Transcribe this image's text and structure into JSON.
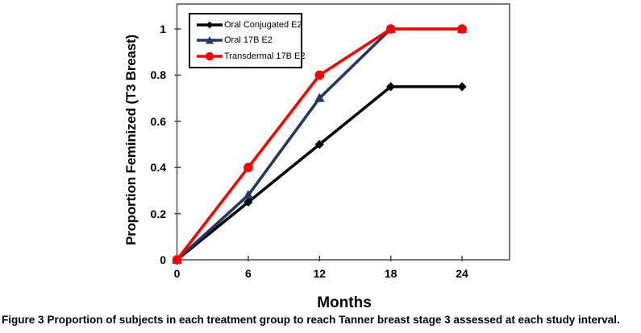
{
  "figure": {
    "caption_label": "Figure 3",
    "caption_text": "Proportion of subjects in each treatment group to reach Tanner breast stage 3 assessed at each study interval."
  },
  "chart_data": {
    "type": "line",
    "title": "",
    "xlabel": "Months",
    "ylabel": "Proportion Feminized (T3 Breast)",
    "x": [
      0,
      6,
      12,
      18,
      24
    ],
    "xtick_labels": [
      "0",
      "6",
      "12",
      "18",
      "24"
    ],
    "ytick_values": [
      0,
      0.2,
      0.4,
      0.6,
      0.8,
      1
    ],
    "ytick_labels": [
      "0",
      "0.2",
      "0.4",
      "0.6",
      "0.8",
      "1"
    ],
    "xlim": [
      0,
      28
    ],
    "ylim": [
      0,
      1.108
    ],
    "grid": false,
    "legend_position": "top-left",
    "axis_color": "#595959",
    "tick_color": "#404040",
    "series": [
      {
        "name": "Oral Conjugated E2",
        "color": "#000000",
        "marker": "diamond",
        "values": [
          0,
          0.25,
          0.5,
          0.75,
          0.75
        ]
      },
      {
        "name": "Oral 17B E2",
        "color": "#1F3864",
        "marker": "triangle",
        "values": [
          0,
          0.28,
          0.7,
          1.0,
          1.0
        ]
      },
      {
        "name": "Transdermal 17B E2",
        "color": "#FF0000",
        "marker": "circle",
        "values": [
          0,
          0.4,
          0.8,
          1.0,
          1.0
        ]
      }
    ]
  }
}
